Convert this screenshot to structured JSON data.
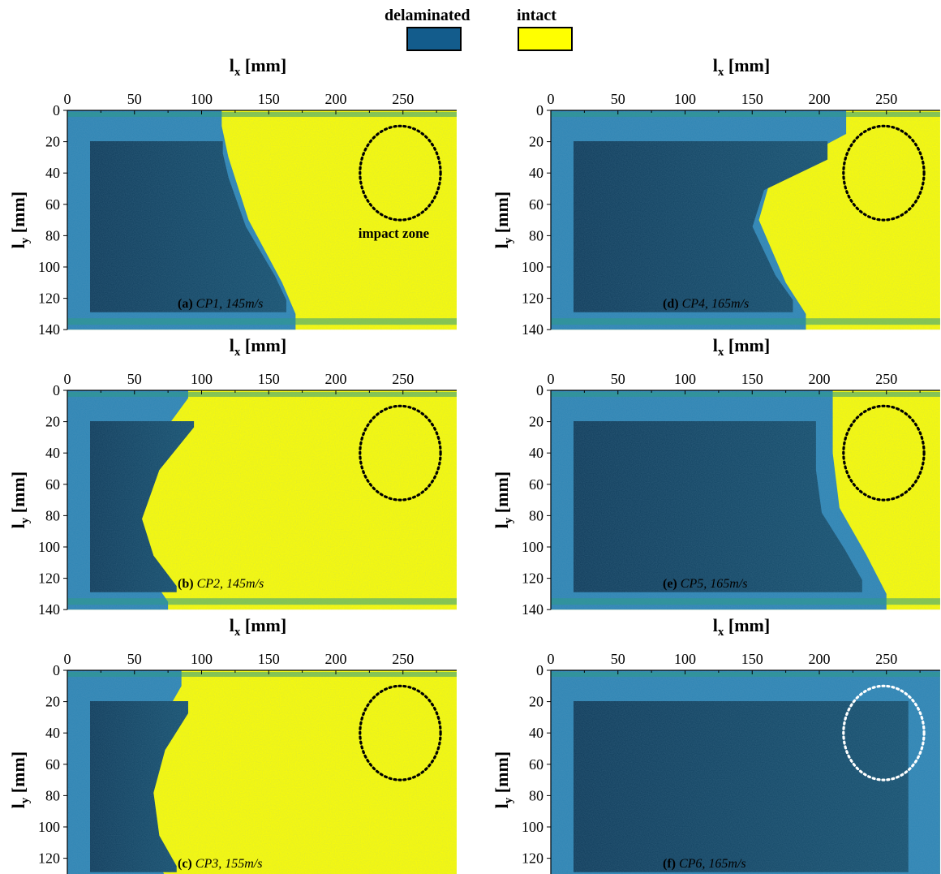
{
  "legend": {
    "delaminated": {
      "label": "delaminated",
      "color": "#135c8c"
    },
    "intact": {
      "label": "intact",
      "color": "#ffff00"
    }
  },
  "axes": {
    "xlabel_main": "l",
    "xlabel_sub": "x",
    "xlabel_unit": " [mm]",
    "ylabel_main": "l",
    "ylabel_sub": "y",
    "ylabel_unit": " [mm]",
    "x_ticks": [
      "0",
      "50",
      "100",
      "150",
      "200",
      "250"
    ],
    "y_ticks": [
      "0",
      "20",
      "40",
      "60",
      "80",
      "100",
      "120",
      "140"
    ]
  },
  "annotation": {
    "impact_zone": "impact zone"
  },
  "chart_data": [
    {
      "type": "heatmap",
      "panel": "(a)",
      "specimen": "CP1",
      "velocity": "145m/s",
      "xlim": [
        0,
        290
      ],
      "ylim": [
        0,
        140
      ],
      "impact_zone_center": [
        248,
        40
      ],
      "impact_zone_radius_mm": 30,
      "delamination_front": [
        [
          115,
          10
        ],
        [
          120,
          30
        ],
        [
          135,
          70
        ],
        [
          160,
          110
        ],
        [
          170,
          130
        ]
      ],
      "circle_color": "#000000"
    },
    {
      "type": "heatmap",
      "panel": "(b)",
      "specimen": "CP2",
      "velocity": "145m/s",
      "xlim": [
        0,
        290
      ],
      "ylim": [
        0,
        140
      ],
      "impact_zone_center": [
        248,
        40
      ],
      "impact_zone_radius_mm": 30,
      "delamination_front": [
        [
          90,
          5
        ],
        [
          60,
          40
        ],
        [
          45,
          80
        ],
        [
          55,
          110
        ],
        [
          75,
          135
        ]
      ],
      "circle_color": "#000000"
    },
    {
      "type": "heatmap",
      "panel": "(c)",
      "specimen": "CP3",
      "velocity": "155m/s",
      "xlim": [
        0,
        290
      ],
      "ylim": [
        0,
        140
      ],
      "impact_zone_center": [
        248,
        40
      ],
      "impact_zone_radius_mm": 30,
      "delamination_front": [
        [
          85,
          10
        ],
        [
          65,
          40
        ],
        [
          55,
          75
        ],
        [
          60,
          110
        ],
        [
          75,
          135
        ]
      ],
      "circle_color": "#000000"
    },
    {
      "type": "heatmap",
      "panel": "(d)",
      "specimen": "CP4",
      "velocity": "165m/s",
      "xlim": [
        0,
        290
      ],
      "ylim": [
        0,
        140
      ],
      "impact_zone_center": [
        248,
        40
      ],
      "impact_zone_radius_mm": 30,
      "delamination_front": [
        [
          220,
          15
        ],
        [
          165,
          40
        ],
        [
          155,
          70
        ],
        [
          175,
          110
        ],
        [
          190,
          130
        ]
      ],
      "circle_color": "#000000"
    },
    {
      "type": "heatmap",
      "panel": "(e)",
      "specimen": "CP5",
      "velocity": "165m/s",
      "xlim": [
        0,
        290
      ],
      "ylim": [
        0,
        140
      ],
      "impact_zone_center": [
        248,
        40
      ],
      "impact_zone_radius_mm": 30,
      "delamination_front": [
        [
          210,
          15
        ],
        [
          210,
          40
        ],
        [
          215,
          75
        ],
        [
          235,
          105
        ],
        [
          250,
          130
        ]
      ],
      "circle_color": "#000000"
    },
    {
      "type": "heatmap",
      "panel": "(f)",
      "specimen": "CP6",
      "velocity": "165m/s",
      "xlim": [
        0,
        290
      ],
      "ylim": [
        0,
        140
      ],
      "impact_zone_center": [
        248,
        40
      ],
      "impact_zone_radius_mm": 30,
      "delamination_front": [
        [
          290,
          0
        ],
        [
          290,
          140
        ]
      ],
      "circle_color": "#ffffff"
    }
  ],
  "captions": [
    {
      "tag": "(a)",
      "text": "CP1, 145m/s"
    },
    {
      "tag": "(b)",
      "text": "CP2, 145m/s"
    },
    {
      "tag": "(c)",
      "text": "CP3, 155m/s"
    },
    {
      "tag": "(d)",
      "text": "CP4, 165m/s"
    },
    {
      "tag": "(e)",
      "text": "CP5, 165m/s"
    },
    {
      "tag": "(f)",
      "text": "CP6, 165m/s"
    }
  ]
}
